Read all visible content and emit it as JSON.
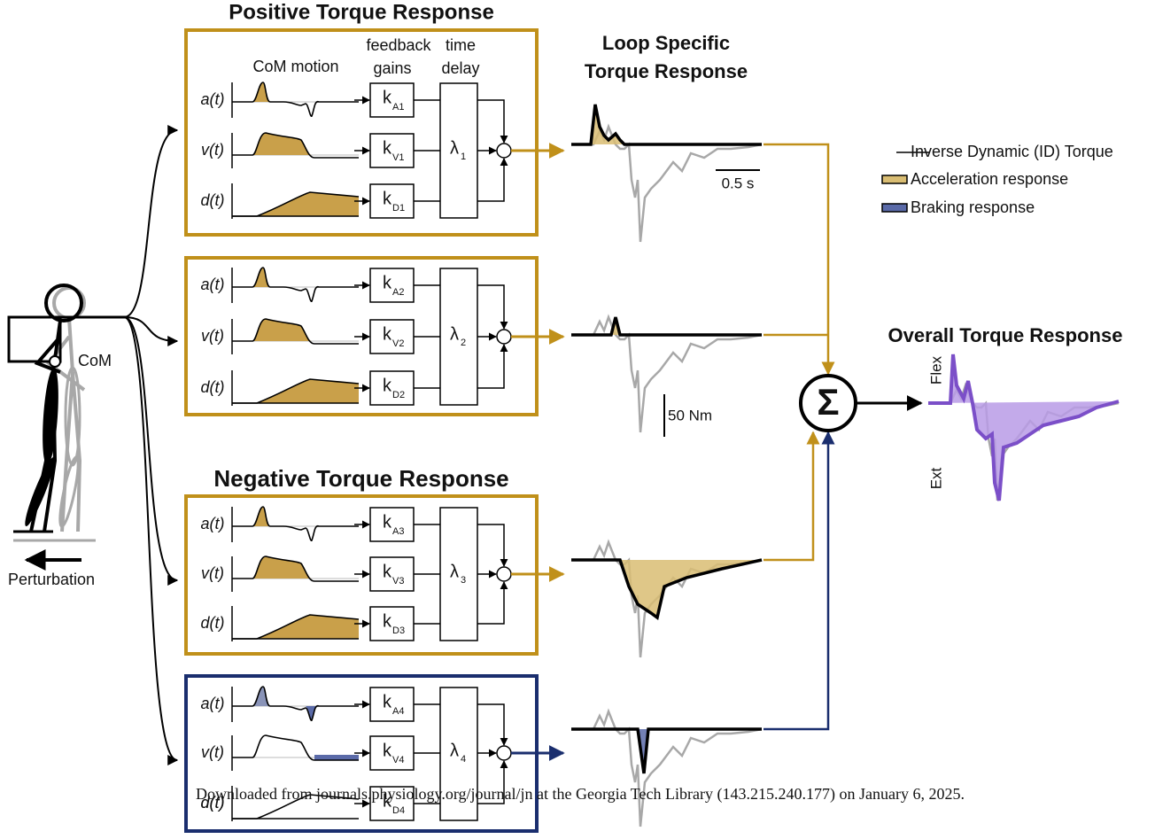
{
  "titles": {
    "positive": "Positive Torque Response",
    "negative": "Negative Torque Response",
    "loop_specific": [
      "Loop Specific",
      "Torque Response"
    ],
    "overall": "Overall Torque Response"
  },
  "column_headers": {
    "com_motion": "CoM motion",
    "feedback": "feedback",
    "gains": "gains",
    "time": "time",
    "delay": "delay"
  },
  "loops": [
    {
      "signals": [
        "a(t)",
        "v(t)",
        "d(t)"
      ],
      "gains": [
        {
          "symbol": "k",
          "subscript": "A1"
        },
        {
          "symbol": "k",
          "subscript": "V1"
        },
        {
          "symbol": "k",
          "subscript": "D1"
        }
      ],
      "delay": {
        "symbol": "λ",
        "subscript": "1"
      }
    },
    {
      "signals": [
        "a(t)",
        "v(t)",
        "d(t)"
      ],
      "gains": [
        {
          "symbol": "k",
          "subscript": "A2"
        },
        {
          "symbol": "k",
          "subscript": "V2"
        },
        {
          "symbol": "k",
          "subscript": "D2"
        }
      ],
      "delay": {
        "symbol": "λ",
        "subscript": "2"
      }
    },
    {
      "signals": [
        "a(t)",
        "v(t)",
        "d(t)"
      ],
      "gains": [
        {
          "symbol": "k",
          "subscript": "A3"
        },
        {
          "symbol": "k",
          "subscript": "V3"
        },
        {
          "symbol": "k",
          "subscript": "D3"
        }
      ],
      "delay": {
        "symbol": "λ",
        "subscript": "3"
      }
    },
    {
      "signals": [
        "a(t)",
        "v(t)",
        "d(t)"
      ],
      "gains": [
        {
          "symbol": "k",
          "subscript": "A4"
        },
        {
          "symbol": "k",
          "subscript": "V4"
        },
        {
          "symbol": "k",
          "subscript": "D4"
        }
      ],
      "delay": {
        "symbol": "λ",
        "subscript": "4"
      }
    }
  ],
  "legend": [
    "Inverse Dynamic (ID) Torque",
    "Acceleration response",
    "Braking response"
  ],
  "scale": {
    "time": "0.5 s",
    "torque": "50 Nm"
  },
  "overall_axis": {
    "flex": "Flex",
    "ext": "Ext"
  },
  "sum_symbol": "Σ",
  "figure": {
    "com": "CoM",
    "perturbation": "Perturbation"
  },
  "footer": "Downloaded from journals.physiology.org/journal/jn at the Georgia Tech Library (143.215.240.177) on January 6, 2025."
}
